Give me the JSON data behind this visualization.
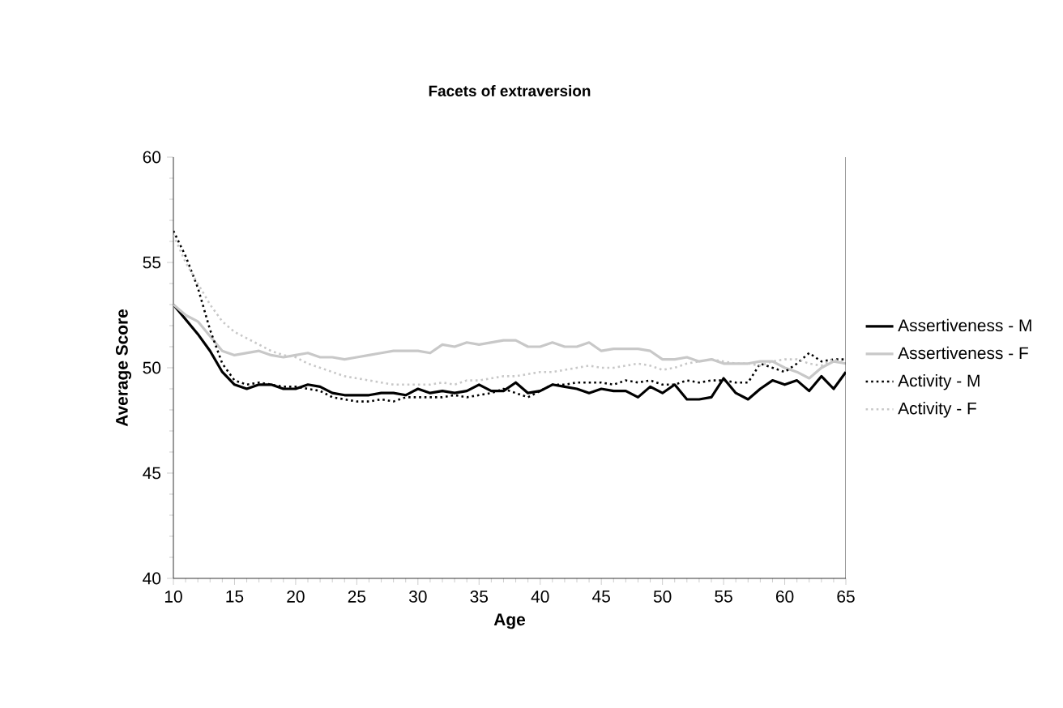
{
  "chart_data": {
    "type": "line",
    "title": "Facets of extraversion",
    "xlabel": "Age",
    "ylabel": "Average Score",
    "x": [
      10,
      11,
      12,
      13,
      14,
      15,
      16,
      17,
      18,
      19,
      20,
      21,
      22,
      23,
      24,
      25,
      26,
      27,
      28,
      29,
      30,
      31,
      32,
      33,
      34,
      35,
      36,
      37,
      38,
      39,
      40,
      41,
      42,
      43,
      44,
      45,
      46,
      47,
      48,
      49,
      50,
      51,
      52,
      53,
      54,
      55,
      56,
      57,
      58,
      59,
      60,
      61,
      62,
      63,
      64,
      65
    ],
    "xlim": [
      10,
      65
    ],
    "xticks": [
      10,
      15,
      20,
      25,
      30,
      35,
      40,
      45,
      50,
      55,
      60,
      65
    ],
    "ylim": [
      40,
      60
    ],
    "yticks": [
      40,
      45,
      50,
      55,
      60
    ],
    "legend": "right",
    "marker": "none",
    "series": [
      {
        "name": "Assertiveness - M",
        "color": "#000000",
        "line_style": "solid",
        "values": [
          53,
          52.3,
          51.6,
          50.8,
          49.8,
          49.2,
          49.0,
          49.2,
          49.2,
          49.0,
          49.0,
          49.2,
          49.1,
          48.8,
          48.7,
          48.7,
          48.7,
          48.8,
          48.8,
          48.7,
          49.0,
          48.8,
          48.9,
          48.8,
          48.9,
          49.2,
          48.9,
          48.9,
          49.3,
          48.8,
          48.9,
          49.2,
          49.1,
          49.0,
          48.8,
          49.0,
          48.9,
          48.9,
          48.6,
          49.1,
          48.8,
          49.2,
          48.5,
          48.5,
          48.6,
          49.5,
          48.8,
          48.5,
          49.0,
          49.4,
          49.2,
          49.4,
          48.9,
          49.6,
          49.0,
          49.8
        ]
      },
      {
        "name": "Assertiveness - F",
        "color": "#c8c8c8",
        "line_style": "solid",
        "values": [
          53,
          52.5,
          52.2,
          51.5,
          50.8,
          50.6,
          50.7,
          50.8,
          50.6,
          50.5,
          50.6,
          50.7,
          50.5,
          50.5,
          50.4,
          50.5,
          50.6,
          50.7,
          50.8,
          50.8,
          50.8,
          50.7,
          51.1,
          51.0,
          51.2,
          51.1,
          51.2,
          51.3,
          51.3,
          51.0,
          51.0,
          51.2,
          51.0,
          51.0,
          51.2,
          50.8,
          50.9,
          50.9,
          50.9,
          50.8,
          50.4,
          50.4,
          50.5,
          50.3,
          50.4,
          50.2,
          50.2,
          50.2,
          50.3,
          50.3,
          50.0,
          49.8,
          49.5,
          50.0,
          50.3,
          50.2
        ]
      },
      {
        "name": "Activity - M",
        "color": "#000000",
        "line_style": "dotted",
        "values": [
          56.5,
          55.3,
          53.8,
          51.8,
          50.2,
          49.4,
          49.2,
          49.3,
          49.2,
          49.1,
          49.1,
          49.0,
          48.9,
          48.6,
          48.5,
          48.4,
          48.4,
          48.5,
          48.4,
          48.6,
          48.6,
          48.6,
          48.6,
          48.7,
          48.6,
          48.7,
          48.8,
          49.0,
          48.8,
          48.6,
          48.9,
          49.2,
          49.2,
          49.3,
          49.3,
          49.3,
          49.2,
          49.4,
          49.3,
          49.4,
          49.2,
          49.2,
          49.4,
          49.3,
          49.4,
          49.4,
          49.3,
          49.3,
          50.2,
          50.0,
          49.8,
          50.2,
          50.7,
          50.3,
          50.4,
          50.4
        ]
      },
      {
        "name": "Activity - F",
        "color": "#c8c8c8",
        "line_style": "dotted",
        "values": [
          56.3,
          55.0,
          54.0,
          53.0,
          52.2,
          51.7,
          51.4,
          51.1,
          50.8,
          50.6,
          50.5,
          50.2,
          50.0,
          49.8,
          49.6,
          49.5,
          49.4,
          49.3,
          49.2,
          49.2,
          49.2,
          49.2,
          49.3,
          49.2,
          49.4,
          49.4,
          49.5,
          49.6,
          49.6,
          49.7,
          49.8,
          49.8,
          49.9,
          50.0,
          50.1,
          50.0,
          50.0,
          50.1,
          50.2,
          50.1,
          49.9,
          50.0,
          50.2,
          50.3,
          50.4,
          50.3,
          50.2,
          50.2,
          50.1,
          50.3,
          50.4,
          50.4,
          50.2,
          50.1,
          50.4,
          50.2
        ]
      }
    ]
  }
}
